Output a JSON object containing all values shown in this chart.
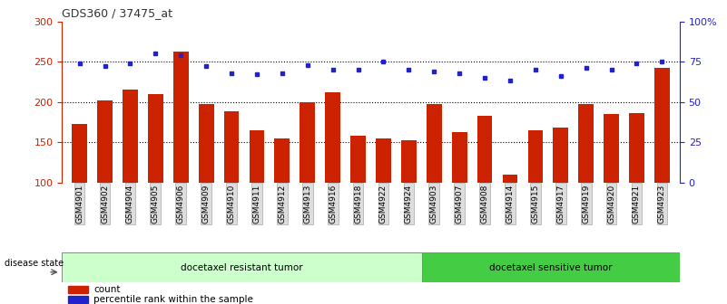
{
  "title": "GDS360 / 37475_at",
  "samples": [
    "GSM4901",
    "GSM4902",
    "GSM4904",
    "GSM4905",
    "GSM4906",
    "GSM4909",
    "GSM4910",
    "GSM4911",
    "GSM4912",
    "GSM4913",
    "GSM4916",
    "GSM4918",
    "GSM4922",
    "GSM4924",
    "GSM4903",
    "GSM4907",
    "GSM4908",
    "GSM4914",
    "GSM4915",
    "GSM4917",
    "GSM4919",
    "GSM4920",
    "GSM4921",
    "GSM4923"
  ],
  "counts": [
    172,
    202,
    215,
    210,
    262,
    197,
    188,
    165,
    155,
    200,
    212,
    158,
    155,
    152,
    197,
    163,
    183,
    110,
    165,
    168,
    197,
    185,
    186,
    242
  ],
  "percentiles": [
    74,
    72,
    74,
    80,
    79,
    72,
    68,
    67,
    68,
    73,
    70,
    70,
    75,
    70,
    69,
    68,
    65,
    63,
    70,
    66,
    71,
    70,
    74,
    75
  ],
  "n_resistant": 14,
  "n_sensitive": 10,
  "bar_color": "#cc2200",
  "dot_color": "#2222cc",
  "left_ylim": [
    100,
    300
  ],
  "left_yticks": [
    100,
    150,
    200,
    250,
    300
  ],
  "left_yticklabels": [
    "100",
    "150",
    "200",
    "250",
    "300"
  ],
  "right_ylim": [
    0,
    100
  ],
  "right_yticks": [
    0,
    25,
    50,
    75,
    100
  ],
  "right_yticklabels": [
    "0",
    "25",
    "50",
    "75",
    "100%"
  ],
  "hline_values": [
    150,
    200,
    250
  ],
  "resistant_label": "docetaxel resistant tumor",
  "sensitive_label": "docetaxel sensitive tumor",
  "disease_state_label": "disease state",
  "legend_count": "count",
  "legend_percentile": "percentile rank within the sample",
  "bg_color_resistant": "#ccffcc",
  "bg_color_sensitive": "#44cc44",
  "title_color": "#333333",
  "left_axis_color": "#cc2200",
  "right_axis_color": "#2222cc",
  "tick_box_color": "#dddddd",
  "tick_box_edge": "#aaaaaa"
}
